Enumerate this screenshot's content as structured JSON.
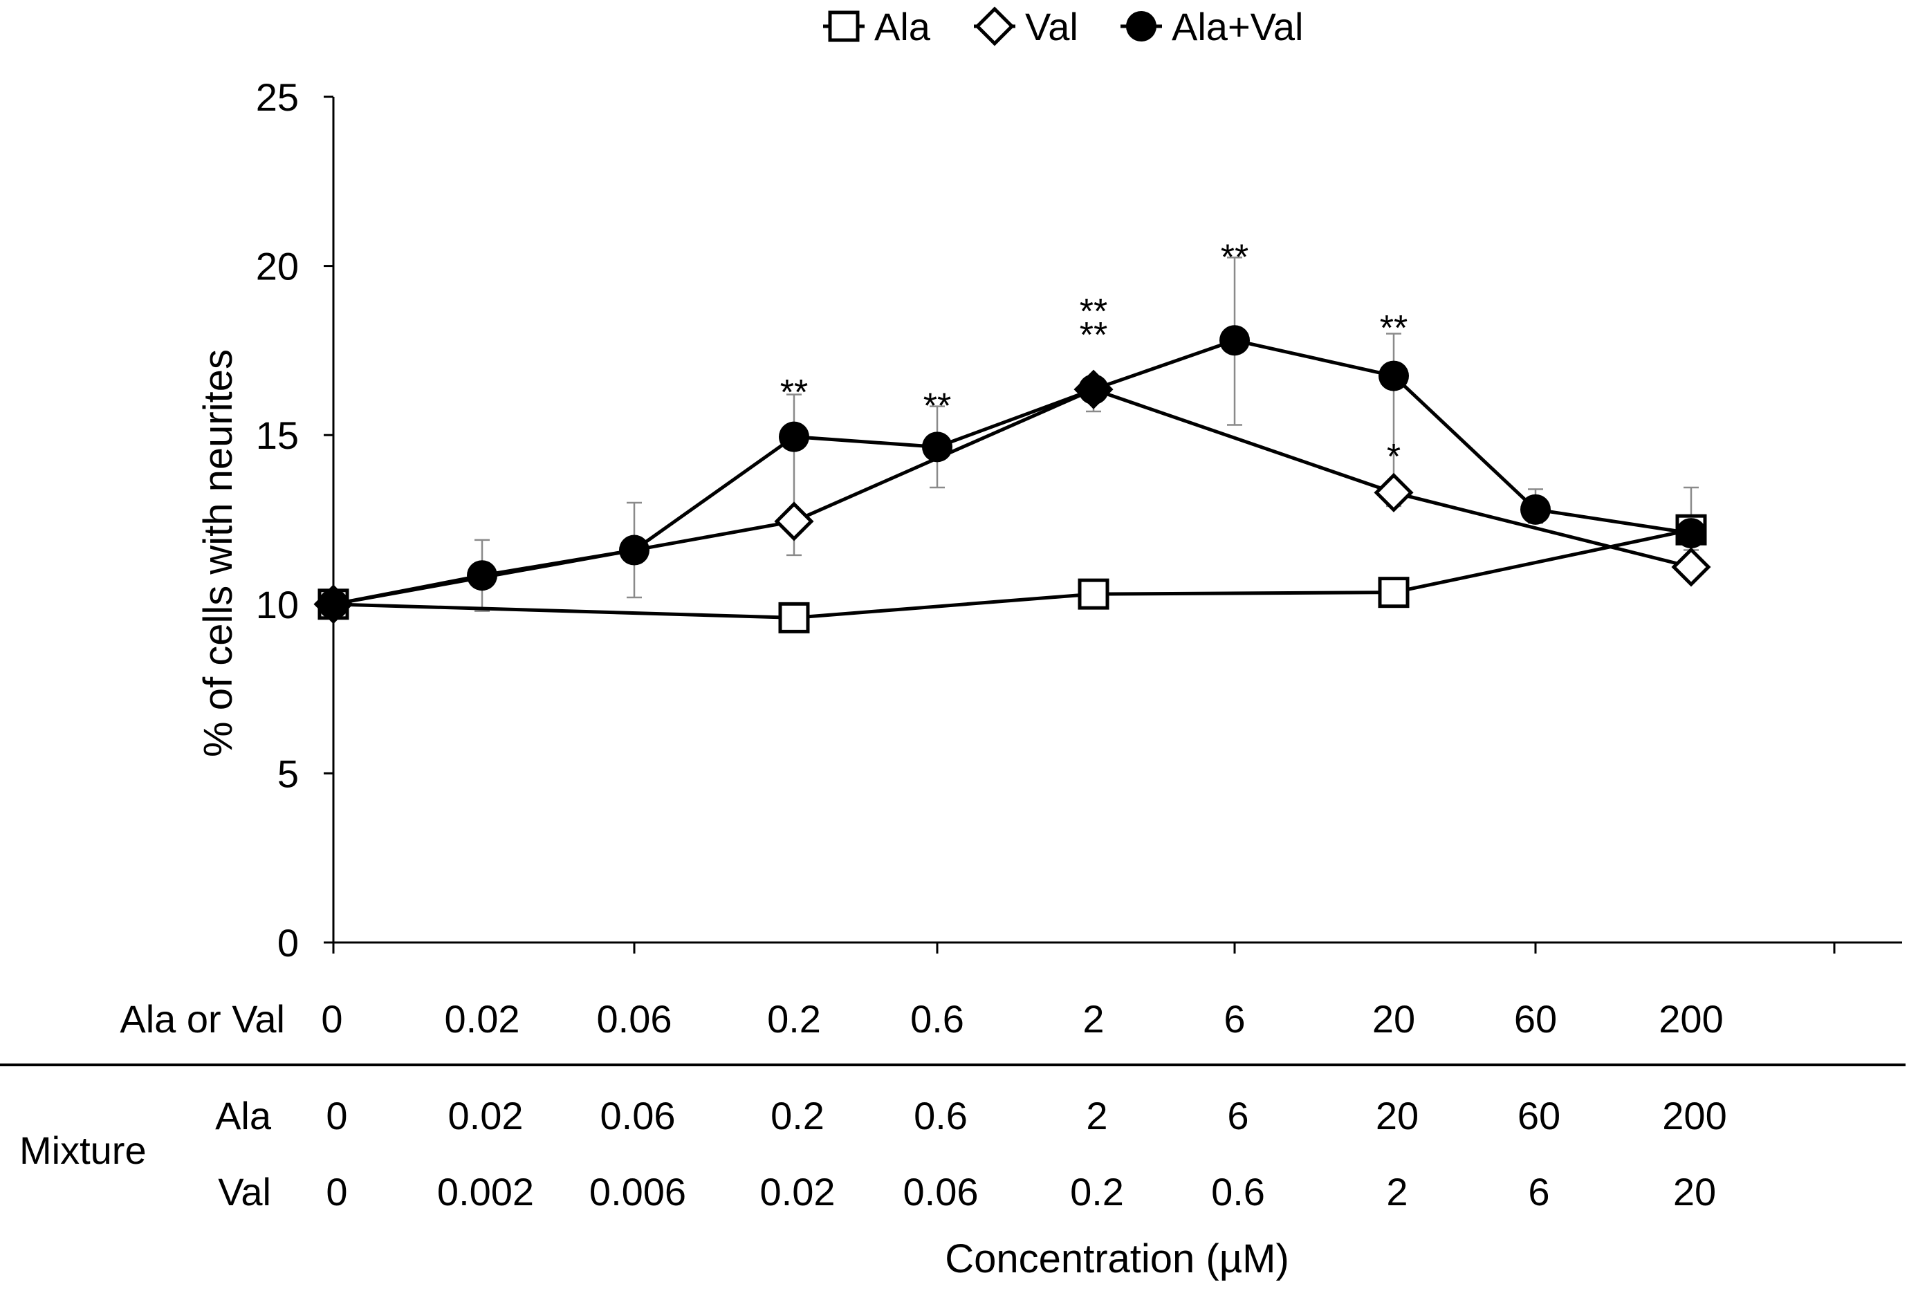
{
  "chart_data": {
    "type": "line",
    "title": "",
    "ylabel": "% of cells with neurites",
    "xlabel": "Concentration (µM)",
    "ylim": [
      0,
      25
    ],
    "yticks": [
      "0",
      "5",
      "10",
      "15",
      "20",
      "25"
    ],
    "grid": false,
    "legend_position": "top-center",
    "legend": [
      "Ala",
      "Val",
      "Ala+Val"
    ],
    "categories": [
      "0",
      "0.02",
      "0.06",
      "0.2",
      "0.6",
      "2",
      "6",
      "20",
      "60",
      "200"
    ],
    "axis_table": {
      "row1_label": "Ala or Val",
      "row1_values": [
        "0",
        "0.02",
        "0.06",
        "0.2",
        "0.6",
        "2",
        "6",
        "20",
        "60",
        "200"
      ],
      "mixture_label": "Mixture",
      "mixture_ala_label": "Ala",
      "mixture_ala_values": [
        "0",
        "0.02",
        "0.06",
        "0.2",
        "0.6",
        "2",
        "6",
        "20",
        "60",
        "200"
      ],
      "mixture_val_label": "Val",
      "mixture_val_values": [
        "0",
        "0.002",
        "0.006",
        "0.02",
        "0.06",
        "0.2",
        "0.6",
        "2",
        "6",
        "20"
      ]
    },
    "series": [
      {
        "name": "Ala",
        "marker": "open-square",
        "points": [
          {
            "x": "0",
            "y": 10.0
          },
          {
            "x": "0.2",
            "y": 9.6
          },
          {
            "x": "2",
            "y": 10.3
          },
          {
            "x": "20",
            "y": 10.35
          },
          {
            "x": "200",
            "y": 12.2
          }
        ]
      },
      {
        "name": "Val",
        "marker": "open-diamond",
        "points": [
          {
            "x": "0",
            "y": 10.0
          },
          {
            "x": "0.2",
            "y": 12.45
          },
          {
            "x": "2",
            "y": 16.35
          },
          {
            "x": "20",
            "y": 13.3
          },
          {
            "x": "200",
            "y": 11.1
          }
        ]
      },
      {
        "name": "Ala+Val",
        "marker": "filled-circle",
        "points": [
          {
            "x": "0",
            "y": 10.0
          },
          {
            "x": "0.02",
            "y": 10.85
          },
          {
            "x": "0.06",
            "y": 11.6
          },
          {
            "x": "0.2",
            "y": 14.95
          },
          {
            "x": "0.6",
            "y": 14.65
          },
          {
            "x": "2",
            "y": 16.35
          },
          {
            "x": "6",
            "y": 17.8
          },
          {
            "x": "20",
            "y": 16.75
          },
          {
            "x": "60",
            "y": 12.8
          },
          {
            "x": "200",
            "y": 12.1
          }
        ]
      }
    ],
    "error_bars": [
      {
        "x": "0.02",
        "low": 9.8,
        "high": 11.9
      },
      {
        "x": "0.06",
        "low": 10.2,
        "high": 13.0
      },
      {
        "x": "0.2",
        "low": 11.45,
        "high": 16.2
      },
      {
        "x": "0.6",
        "low": 13.45,
        "high": 15.85
      },
      {
        "x": "2",
        "low": 15.7,
        "high": 16.6
      },
      {
        "x": "6",
        "low": 15.3,
        "high": 20.25
      },
      {
        "x": "20",
        "low": 12.9,
        "high": 18.0
      },
      {
        "x": "60",
        "low": 12.4,
        "high": 13.4
      },
      {
        "x": "200",
        "low": 11.6,
        "high": 13.45
      }
    ],
    "annotations": [
      {
        "x": "0.2",
        "y": 15.9,
        "text": "**"
      },
      {
        "x": "0.6",
        "y": 15.5,
        "text": "**"
      },
      {
        "x": "2",
        "y": 18.3,
        "text": "**"
      },
      {
        "x": "2",
        "y": 17.6,
        "text": "**"
      },
      {
        "x": "6",
        "y": 19.9,
        "text": "**"
      },
      {
        "x": "20",
        "y": 17.8,
        "text": "**"
      },
      {
        "x": "20",
        "y": 14.0,
        "text": "*"
      }
    ]
  }
}
